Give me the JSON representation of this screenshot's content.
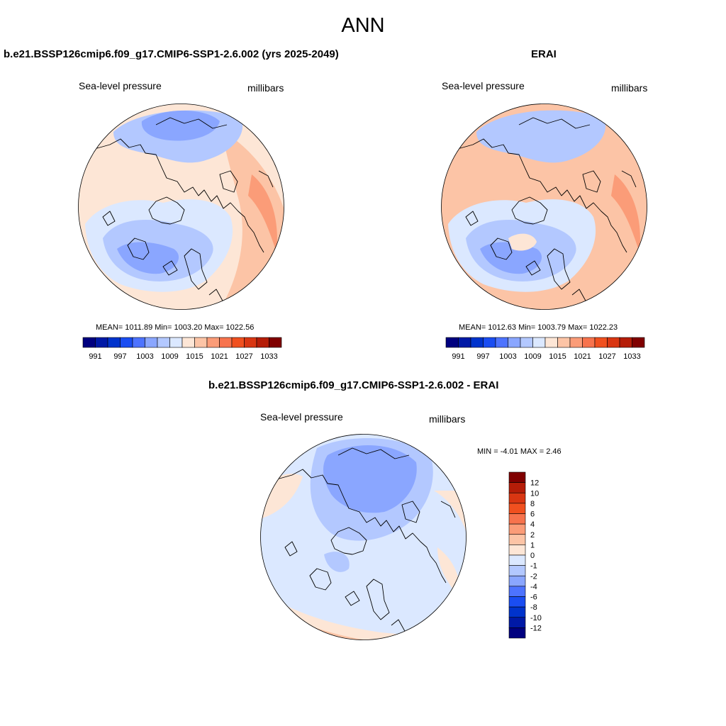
{
  "page": {
    "title": "ANN"
  },
  "panels": {
    "model": {
      "title": "b.e21.BSSP126cmip6.f09_g17.CMIP6-SSP1-2.6.002 (yrs 2025-2049)",
      "left_label": "Sea-level pressure",
      "right_label": "millibars",
      "stats": "MEAN= 1011.89  Min= 1003.20  Max= 1022.56"
    },
    "obs": {
      "title": "ERAI",
      "left_label": "Sea-level pressure",
      "right_label": "millibars",
      "stats": "MEAN= 1012.63  Min= 1003.79  Max= 1022.23"
    },
    "diff": {
      "title": "b.e21.BSSP126cmip6.f09_g17.CMIP6-SSP1-2.6.002 - ERAI",
      "left_label": "Sea-level pressure",
      "right_label": "millibars",
      "minmax": "MIN =  -4.01 MAX =   2.46"
    }
  },
  "colorbar_abs": {
    "colors": [
      "#00007f",
      "#0019a6",
      "#0033cc",
      "#1a4df2",
      "#4d73ff",
      "#8aa6ff",
      "#b3c8ff",
      "#dbe8ff",
      "#fde6d6",
      "#fcc4a6",
      "#fb9c78",
      "#f7734d",
      "#f0501f",
      "#d93612",
      "#b51d08",
      "#800000"
    ],
    "tick_labels": [
      "991",
      "997",
      "1003",
      "1009",
      "1015",
      "1021",
      "1027",
      "1033"
    ]
  },
  "colorbar_diff": {
    "colors": [
      "#800000",
      "#b51d08",
      "#d93612",
      "#f0501f",
      "#f7734d",
      "#fb9c78",
      "#fcc4a6",
      "#fde6d6",
      "#dbe8ff",
      "#b3c8ff",
      "#8aa6ff",
      "#4d73ff",
      "#1a4df2",
      "#0033cc",
      "#0019a6",
      "#00007f"
    ],
    "tick_labels": [
      "12",
      "10",
      "8",
      "6",
      "4",
      "2",
      "1",
      "0",
      "-1",
      "-2",
      "-4",
      "-6",
      "-8",
      "-10",
      "-12"
    ]
  },
  "map_colors": {
    "pink_light": "#fde6d6",
    "pink": "#fcc4a6",
    "salmon": "#fb9c78",
    "blue_pale": "#dbe8ff",
    "blue_light": "#b3c8ff",
    "blue_mid": "#8aa6ff",
    "blue": "#6f8ff7"
  }
}
